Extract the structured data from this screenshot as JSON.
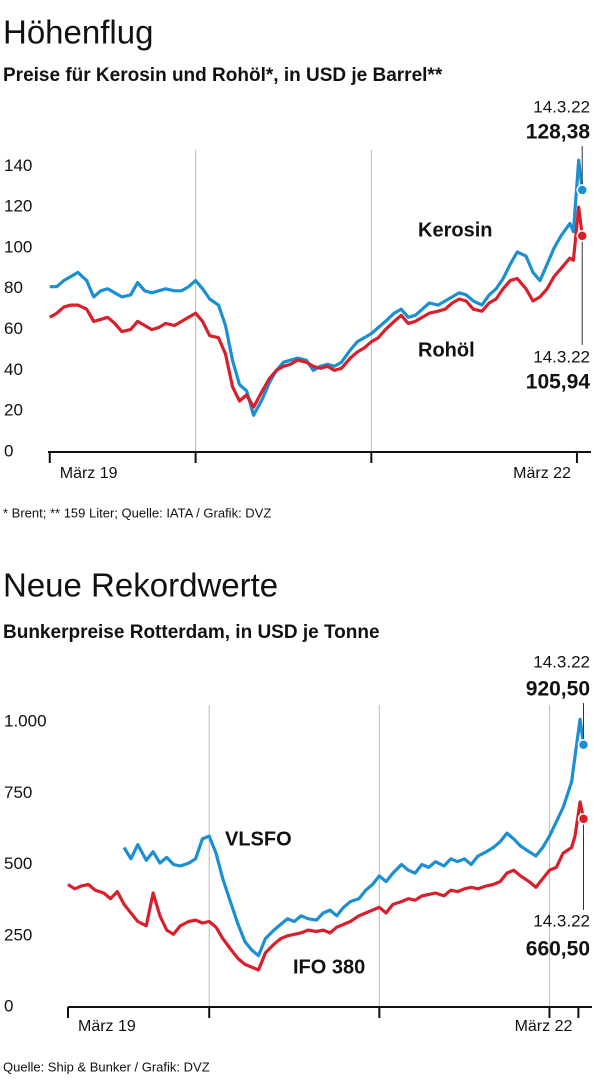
{
  "chart_data": [
    {
      "type": "line",
      "title": "Höhenflug",
      "subtitle": "Preise für Kerosin und Rohöl*, in USD je Barrel**",
      "note": "* Brent; ** 159 Liter; Quelle: IATA / Grafik: DVZ",
      "x": [
        2019.17,
        2019.21,
        2019.25,
        2019.29,
        2019.33,
        2019.38,
        2019.42,
        2019.46,
        2019.5,
        2019.54,
        2019.58,
        2019.63,
        2019.67,
        2019.71,
        2019.75,
        2019.79,
        2019.83,
        2019.88,
        2019.92,
        2019.96,
        2020.0,
        2020.04,
        2020.08,
        2020.13,
        2020.17,
        2020.21,
        2020.25,
        2020.29,
        2020.33,
        2020.38,
        2020.42,
        2020.46,
        2020.5,
        2020.54,
        2020.58,
        2020.63,
        2020.67,
        2020.71,
        2020.75,
        2020.79,
        2020.83,
        2020.88,
        2020.92,
        2020.96,
        2021.0,
        2021.04,
        2021.08,
        2021.13,
        2021.17,
        2021.21,
        2021.25,
        2021.29,
        2021.33,
        2021.38,
        2021.42,
        2021.46,
        2021.5,
        2021.54,
        2021.58,
        2021.63,
        2021.67,
        2021.71,
        2021.75,
        2021.79,
        2021.83,
        2021.88,
        2021.92,
        2021.96,
        2022.0,
        2022.04,
        2022.08,
        2022.13,
        2022.15,
        2022.18,
        2022.2
      ],
      "xlim": [
        2019.16,
        2022.25
      ],
      "xticks": [
        {
          "value": 2019.17,
          "label": "März 19"
        },
        {
          "value": 2020.0,
          "label": null
        },
        {
          "value": 2021.0,
          "label": null
        },
        {
          "value": 2022.17,
          "label": "März 22"
        }
      ],
      "xgrid": true,
      "ylim": [
        0,
        148
      ],
      "yticks": [
        0,
        20,
        40,
        60,
        80,
        100,
        120,
        140
      ],
      "series": [
        {
          "name": "Kerosin",
          "color": "#1b8fd2",
          "annotation": "14.3.22",
          "values": [
            81,
            81,
            84,
            86,
            88,
            84,
            76,
            79,
            80,
            78,
            76,
            77,
            83,
            79,
            78,
            79,
            80,
            79,
            79,
            81,
            84,
            80,
            75,
            72,
            62,
            45,
            33,
            30,
            18,
            26,
            34,
            40,
            44,
            45,
            46,
            45,
            40,
            42,
            43,
            42,
            44,
            50,
            54,
            56,
            58,
            61,
            64,
            68,
            70,
            66,
            67,
            70,
            73,
            72,
            74,
            76,
            78,
            77,
            74,
            72,
            77,
            80,
            85,
            92,
            98,
            96,
            88,
            84,
            92,
            100,
            106,
            112,
            108,
            143,
            128.38
          ],
          "value_labels": [
            null,
            null,
            null,
            null,
            null,
            null,
            null,
            null,
            null,
            null,
            null,
            null,
            null,
            null,
            null,
            null,
            null,
            null,
            null,
            null,
            null,
            null,
            null,
            null,
            null,
            null,
            null,
            null,
            null,
            null,
            null,
            null,
            null,
            null,
            null,
            null,
            null,
            null,
            null,
            null,
            null,
            null,
            null,
            null,
            null,
            null,
            null,
            null,
            null,
            null,
            null,
            null,
            null,
            null,
            null,
            null,
            null,
            null,
            null,
            null,
            null,
            null,
            null,
            null,
            null,
            null,
            null,
            null,
            null,
            null,
            null,
            null,
            null,
            null,
            "128,38"
          ]
        },
        {
          "name": "Rohöl",
          "color": "#d7202b",
          "annotation": "14.3.22",
          "values": [
            66,
            68,
            71,
            72,
            72,
            70,
            64,
            65,
            66,
            63,
            59,
            60,
            64,
            62,
            60,
            61,
            63,
            62,
            64,
            66,
            68,
            64,
            57,
            56,
            48,
            32,
            25,
            28,
            22,
            30,
            36,
            40,
            42,
            43,
            45,
            44,
            42,
            41,
            42,
            40,
            41,
            46,
            49,
            51,
            54,
            56,
            60,
            64,
            67,
            63,
            64,
            66,
            68,
            69,
            70,
            73,
            75,
            74,
            70,
            69,
            73,
            75,
            80,
            84,
            85,
            80,
            74,
            76,
            80,
            86,
            90,
            95,
            94,
            120,
            105.94
          ],
          "value_labels": [
            null,
            null,
            null,
            null,
            null,
            null,
            null,
            null,
            null,
            null,
            null,
            null,
            null,
            null,
            null,
            null,
            null,
            null,
            null,
            null,
            null,
            null,
            null,
            null,
            null,
            null,
            null,
            null,
            null,
            null,
            null,
            null,
            null,
            null,
            null,
            null,
            null,
            null,
            null,
            null,
            null,
            null,
            null,
            null,
            null,
            null,
            null,
            null,
            null,
            null,
            null,
            null,
            null,
            null,
            null,
            null,
            null,
            null,
            null,
            null,
            null,
            null,
            null,
            null,
            null,
            null,
            null,
            null,
            null,
            null,
            null,
            null,
            null,
            null,
            "105,94"
          ]
        }
      ]
    },
    {
      "type": "line",
      "title": "Neue Rekordwerte",
      "subtitle": "Bunkerpreise Rotterdam, in USD je Tonne",
      "note": "Quelle: Ship & Bunker / Grafik: DVZ",
      "x": [
        2019.17,
        2019.21,
        2019.25,
        2019.29,
        2019.33,
        2019.38,
        2019.42,
        2019.46,
        2019.5,
        2019.54,
        2019.58,
        2019.63,
        2019.67,
        2019.71,
        2019.75,
        2019.79,
        2019.83,
        2019.88,
        2019.92,
        2019.96,
        2020.0,
        2020.04,
        2020.08,
        2020.13,
        2020.17,
        2020.21,
        2020.25,
        2020.29,
        2020.33,
        2020.38,
        2020.42,
        2020.46,
        2020.5,
        2020.54,
        2020.58,
        2020.63,
        2020.67,
        2020.71,
        2020.75,
        2020.79,
        2020.83,
        2020.88,
        2020.92,
        2020.96,
        2021.0,
        2021.04,
        2021.08,
        2021.13,
        2021.17,
        2021.21,
        2021.25,
        2021.29,
        2021.33,
        2021.38,
        2021.42,
        2021.46,
        2021.5,
        2021.54,
        2021.58,
        2021.63,
        2021.67,
        2021.71,
        2021.75,
        2021.79,
        2021.83,
        2021.88,
        2021.92,
        2021.96,
        2022.0,
        2022.04,
        2022.08,
        2022.13,
        2022.15,
        2022.18,
        2022.2
      ],
      "xlim": [
        2019.17,
        2022.25
      ],
      "xticks": [
        {
          "value": 2019.17,
          "label": "März 19"
        },
        {
          "value": 2020.0,
          "label": null
        },
        {
          "value": 2021.0,
          "label": null
        },
        {
          "value": 2022.0,
          "label": null
        },
        {
          "value": 2022.17,
          "label": "März 22"
        }
      ],
      "xgrid": true,
      "ylim": [
        0,
        1060
      ],
      "yticks": [
        0,
        250,
        500,
        750,
        {
          "value": 1000,
          "label": "1.000"
        }
      ],
      "series": [
        {
          "name": "VLSFO",
          "color": "#1b8fd2",
          "annotation": "14.3.22",
          "values": [
            null,
            null,
            null,
            null,
            null,
            null,
            null,
            null,
            560,
            520,
            570,
            515,
            545,
            505,
            525,
            500,
            495,
            505,
            520,
            590,
            600,
            540,
            450,
            360,
            290,
            230,
            200,
            180,
            240,
            270,
            290,
            310,
            300,
            320,
            310,
            305,
            330,
            340,
            320,
            350,
            370,
            380,
            410,
            430,
            460,
            440,
            470,
            500,
            480,
            470,
            500,
            490,
            510,
            495,
            520,
            510,
            520,
            500,
            530,
            545,
            560,
            580,
            610,
            590,
            565,
            545,
            530,
            560,
            600,
            650,
            700,
            790,
            880,
            1010,
            920.5
          ],
          "value_labels": [
            null,
            null,
            null,
            null,
            null,
            null,
            null,
            null,
            null,
            null,
            null,
            null,
            null,
            null,
            null,
            null,
            null,
            null,
            null,
            null,
            null,
            null,
            null,
            null,
            null,
            null,
            null,
            null,
            null,
            null,
            null,
            null,
            null,
            null,
            null,
            null,
            null,
            null,
            null,
            null,
            null,
            null,
            null,
            null,
            null,
            null,
            null,
            null,
            null,
            null,
            null,
            null,
            null,
            null,
            null,
            null,
            null,
            null,
            null,
            null,
            null,
            null,
            null,
            null,
            null,
            null,
            null,
            null,
            null,
            null,
            null,
            null,
            null,
            null,
            "920,50"
          ]
        },
        {
          "name": "IFO 380",
          "color": "#d7202b",
          "annotation": "14.3.22",
          "values": [
            430,
            415,
            425,
            430,
            410,
            400,
            380,
            405,
            360,
            330,
            300,
            285,
            400,
            320,
            270,
            255,
            285,
            300,
            305,
            295,
            300,
            280,
            240,
            200,
            170,
            150,
            140,
            130,
            190,
            220,
            240,
            250,
            255,
            260,
            270,
            265,
            270,
            260,
            280,
            290,
            300,
            320,
            330,
            340,
            350,
            330,
            360,
            370,
            380,
            375,
            390,
            395,
            400,
            390,
            410,
            405,
            415,
            420,
            415,
            425,
            430,
            440,
            470,
            480,
            460,
            440,
            420,
            450,
            480,
            490,
            540,
            560,
            600,
            720,
            660.5
          ],
          "value_labels": [
            null,
            null,
            null,
            null,
            null,
            null,
            null,
            null,
            null,
            null,
            null,
            null,
            null,
            null,
            null,
            null,
            null,
            null,
            null,
            null,
            null,
            null,
            null,
            null,
            null,
            null,
            null,
            null,
            null,
            null,
            null,
            null,
            null,
            null,
            null,
            null,
            null,
            null,
            null,
            null,
            null,
            null,
            null,
            null,
            null,
            null,
            null,
            null,
            null,
            null,
            null,
            null,
            null,
            null,
            null,
            null,
            null,
            null,
            null,
            null,
            null,
            null,
            null,
            null,
            null,
            null,
            null,
            null,
            null,
            null,
            null,
            null,
            null,
            null,
            "660,50"
          ]
        }
      ]
    }
  ]
}
